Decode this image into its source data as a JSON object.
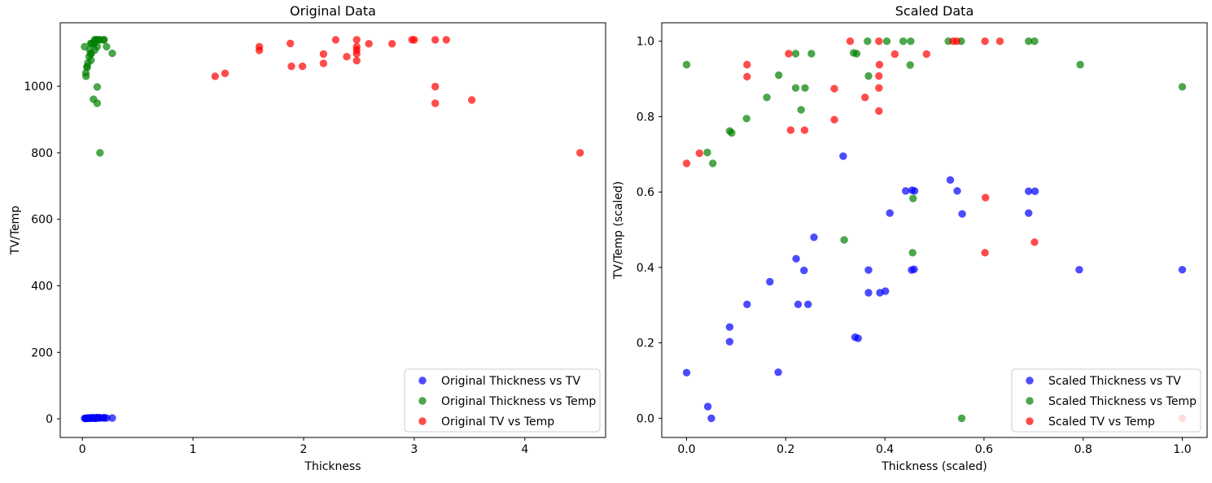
{
  "figure": {
    "background": "#ffffff"
  },
  "colors": {
    "blue": "#0000ff",
    "green": "#008000",
    "red": "#ff0000",
    "legend_border": "#cccccc",
    "spine": "#000000",
    "marker_alpha": 0.7,
    "legend_bg_alpha": 0.8
  },
  "chart_data": [
    {
      "type": "scatter",
      "title": "Original Data",
      "xlabel": "Thickness",
      "ylabel": "TV/Temp",
      "xlim": [
        -0.2,
        4.73
      ],
      "ylim": [
        -56,
        1191
      ],
      "xticks": [
        0,
        1,
        2,
        3,
        4
      ],
      "xtick_labels": [
        "0",
        "1",
        "2",
        "3",
        "4"
      ],
      "yticks": [
        0,
        200,
        400,
        600,
        800,
        1000
      ],
      "ytick_labels": [
        "0",
        "200",
        "400",
        "600",
        "800",
        "1000"
      ],
      "grid": false,
      "legend_position": "lower right",
      "series": [
        {
          "name": "Original Thickness vs TV",
          "color": "#0000ff",
          "points": [
            [
              0.02,
              1.6
            ],
            [
              0.031,
              1.3
            ],
            [
              0.033,
              1.2
            ],
            [
              0.042,
              2.0
            ],
            [
              0.042,
              1.87
            ],
            [
              0.051,
              2.2
            ],
            [
              0.062,
              2.39
            ],
            [
              0.066,
              1.6
            ],
            [
              0.075,
              2.6
            ],
            [
              0.076,
              2.2
            ],
            [
              0.079,
              2.49
            ],
            [
              0.081,
              2.2
            ],
            [
              0.084,
              2.78
            ],
            [
              0.099,
              3.49
            ],
            [
              0.105,
              1.91
            ],
            [
              0.107,
              1.9
            ],
            [
              0.112,
              2.3
            ],
            [
              0.112,
              2.5
            ],
            [
              0.118,
              2.3
            ],
            [
              0.12,
              2.31
            ],
            [
              0.123,
              3.0
            ],
            [
              0.131,
              3.19
            ],
            [
              0.134,
              3.2
            ],
            [
              0.135,
              3.19
            ],
            [
              0.134,
              2.5
            ],
            [
              0.135,
              2.5
            ],
            [
              0.153,
              3.29
            ],
            [
              0.157,
              3.19
            ],
            [
              0.159,
              2.99
            ],
            [
              0.193,
              3.19
            ],
            [
              0.196,
              3.19
            ],
            [
              0.193,
              3.0
            ],
            [
              0.218,
              2.5
            ],
            [
              0.27,
              2.5
            ]
          ]
        },
        {
          "name": "Original Thickness vs Temp",
          "color": "#008000",
          "points": [
            [
              0.02,
              1119
            ],
            [
              0.031,
              1040
            ],
            [
              0.033,
              1030
            ],
            [
              0.042,
              1059
            ],
            [
              0.043,
              1057
            ],
            [
              0.05,
              1070
            ],
            [
              0.061,
              1089
            ],
            [
              0.067,
              1109
            ],
            [
              0.075,
              1129
            ],
            [
              0.075,
              1098
            ],
            [
              0.078,
              1078
            ],
            [
              0.08,
              1098
            ],
            [
              0.083,
              1129
            ],
            [
              0.1,
              961
            ],
            [
              0.104,
              1129
            ],
            [
              0.106,
              1129
            ],
            [
              0.111,
              1140
            ],
            [
              0.112,
              1109
            ],
            [
              0.121,
              1140
            ],
            [
              0.129,
              1140
            ],
            [
              0.133,
              1140
            ],
            [
              0.133,
              1119
            ],
            [
              0.134,
              949
            ],
            [
              0.134,
              998
            ],
            [
              0.152,
              1140
            ],
            [
              0.159,
              1140
            ],
            [
              0.159,
              800
            ],
            [
              0.193,
              1140
            ],
            [
              0.196,
              1140
            ],
            [
              0.219,
              1119
            ],
            [
              0.27,
              1099
            ]
          ]
        },
        {
          "name": "Original TV vs Temp",
          "color": "#ff0000",
          "points": [
            [
              1.2,
              1030
            ],
            [
              1.29,
              1039
            ],
            [
              1.6,
              1119
            ],
            [
              1.6,
              1108
            ],
            [
              1.88,
              1129
            ],
            [
              1.89,
              1060
            ],
            [
              1.99,
              1060
            ],
            [
              2.18,
              1097
            ],
            [
              2.18,
              1069
            ],
            [
              2.29,
              1140
            ],
            [
              2.39,
              1089
            ],
            [
              2.48,
              1140
            ],
            [
              2.48,
              1119
            ],
            [
              2.48,
              1109
            ],
            [
              2.48,
              1098
            ],
            [
              2.48,
              1077
            ],
            [
              2.59,
              1128
            ],
            [
              2.8,
              1128
            ],
            [
              2.98,
              1140
            ],
            [
              3.0,
              1140
            ],
            [
              3.19,
              1140
            ],
            [
              3.29,
              1140
            ],
            [
              3.19,
              999
            ],
            [
              3.19,
              949
            ],
            [
              3.52,
              959
            ],
            [
              4.5,
              800
            ]
          ]
        }
      ]
    },
    {
      "type": "scatter",
      "title": "Scaled Data",
      "xlabel": "Thickness (scaled)",
      "ylabel": "TV/Temp (scaled)",
      "xlim": [
        -0.05,
        1.05
      ],
      "ylim": [
        -0.051,
        1.049
      ],
      "xticks": [
        0.0,
        0.2,
        0.4,
        0.6,
        0.8,
        1.0
      ],
      "xtick_labels": [
        "0.0",
        "0.2",
        "0.4",
        "0.6",
        "0.8",
        "1.0"
      ],
      "yticks": [
        0.0,
        0.2,
        0.4,
        0.6,
        0.8,
        1.0
      ],
      "ytick_labels": [
        "0.0",
        "0.2",
        "0.4",
        "0.6",
        "0.8",
        "1.0"
      ],
      "grid": false,
      "legend_position": "lower right",
      "series": [
        {
          "name": "Scaled Thickness vs TV",
          "color": "#0000ff",
          "points": [
            [
              0.0,
              0.121
            ],
            [
              0.043,
              0.031
            ],
            [
              0.05,
              0.0
            ],
            [
              0.087,
              0.242
            ],
            [
              0.087,
              0.203
            ],
            [
              0.122,
              0.302
            ],
            [
              0.168,
              0.362
            ],
            [
              0.185,
              0.122
            ],
            [
              0.221,
              0.423
            ],
            [
              0.225,
              0.302
            ],
            [
              0.237,
              0.392
            ],
            [
              0.245,
              0.302
            ],
            [
              0.257,
              0.48
            ],
            [
              0.316,
              0.695
            ],
            [
              0.34,
              0.215
            ],
            [
              0.346,
              0.212
            ],
            [
              0.367,
              0.333
            ],
            [
              0.367,
              0.393
            ],
            [
              0.39,
              0.333
            ],
            [
              0.401,
              0.337
            ],
            [
              0.41,
              0.544
            ],
            [
              0.442,
              0.603
            ],
            [
              0.455,
              0.605
            ],
            [
              0.46,
              0.603
            ],
            [
              0.454,
              0.393
            ],
            [
              0.459,
              0.395
            ],
            [
              0.532,
              0.632
            ],
            [
              0.546,
              0.603
            ],
            [
              0.556,
              0.542
            ],
            [
              0.69,
              0.602
            ],
            [
              0.703,
              0.602
            ],
            [
              0.69,
              0.544
            ],
            [
              0.792,
              0.394
            ],
            [
              1.0,
              0.394
            ]
          ]
        },
        {
          "name": "Scaled Thickness vs Temp",
          "color": "#008000",
          "points": [
            [
              0.0,
              0.938
            ],
            [
              0.042,
              0.705
            ],
            [
              0.053,
              0.676
            ],
            [
              0.087,
              0.762
            ],
            [
              0.091,
              0.757
            ],
            [
              0.121,
              0.795
            ],
            [
              0.162,
              0.851
            ],
            [
              0.186,
              0.91
            ],
            [
              0.22,
              0.967
            ],
            [
              0.22,
              0.876
            ],
            [
              0.231,
              0.818
            ],
            [
              0.239,
              0.876
            ],
            [
              0.252,
              0.967
            ],
            [
              0.318,
              0.473
            ],
            [
              0.337,
              0.969
            ],
            [
              0.343,
              0.967
            ],
            [
              0.365,
              1.0
            ],
            [
              0.367,
              0.908
            ],
            [
              0.404,
              1.0
            ],
            [
              0.437,
              1.0
            ],
            [
              0.452,
              1.0
            ],
            [
              0.451,
              0.937
            ],
            [
              0.456,
              0.439
            ],
            [
              0.457,
              0.583
            ],
            [
              0.528,
              1.0
            ],
            [
              0.554,
              1.0
            ],
            [
              0.555,
              0.0
            ],
            [
              0.69,
              1.0
            ],
            [
              0.702,
              1.0
            ],
            [
              0.794,
              0.938
            ],
            [
              1.0,
              0.879
            ]
          ]
        },
        {
          "name": "Scaled TV vs Temp",
          "color": "#ff0000",
          "points": [
            [
              0.0,
              0.676
            ],
            [
              0.026,
              0.703
            ],
            [
              0.122,
              0.938
            ],
            [
              0.122,
              0.906
            ],
            [
              0.206,
              0.967
            ],
            [
              0.21,
              0.764
            ],
            [
              0.238,
              0.764
            ],
            [
              0.298,
              0.874
            ],
            [
              0.298,
              0.792
            ],
            [
              0.33,
              1.0
            ],
            [
              0.36,
              0.851
            ],
            [
              0.388,
              1.0
            ],
            [
              0.389,
              0.938
            ],
            [
              0.388,
              0.908
            ],
            [
              0.388,
              0.876
            ],
            [
              0.388,
              0.815
            ],
            [
              0.42,
              0.966
            ],
            [
              0.484,
              0.966
            ],
            [
              0.538,
              1.0
            ],
            [
              0.545,
              1.0
            ],
            [
              0.602,
              1.0
            ],
            [
              0.632,
              1.0
            ],
            [
              0.603,
              0.585
            ],
            [
              0.602,
              0.439
            ],
            [
              0.702,
              0.467
            ],
            [
              1.0,
              0.0
            ]
          ]
        }
      ]
    }
  ]
}
